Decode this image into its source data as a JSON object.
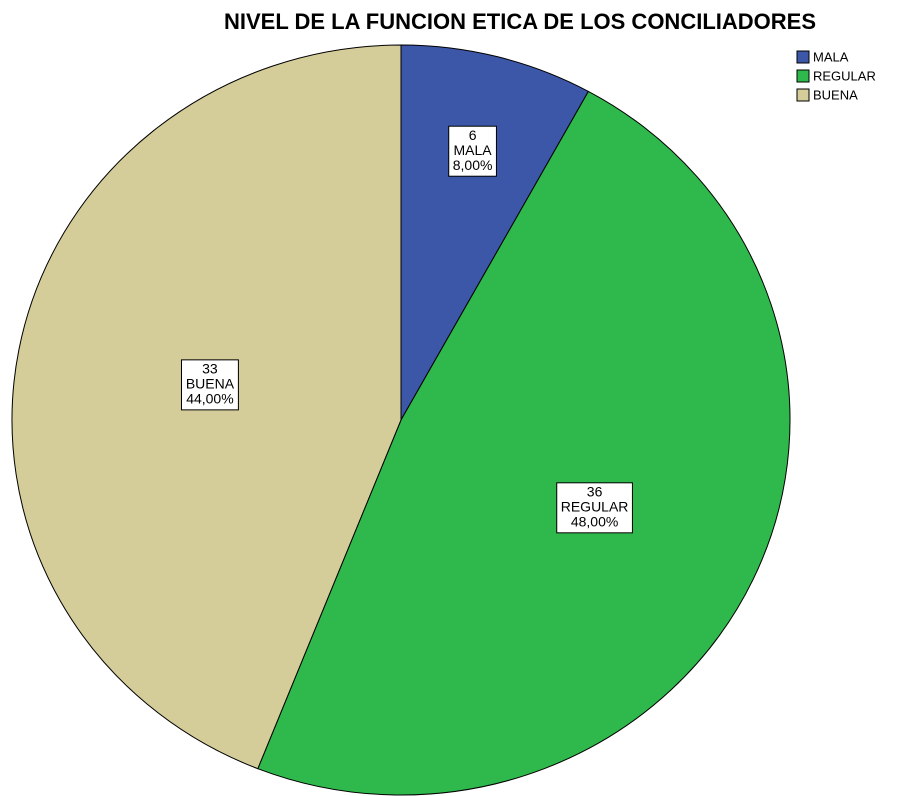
{
  "chart_data": {
    "type": "pie",
    "title": "NIVEL DE LA FUNCION ETICA DE LOS CONCILIADORES",
    "categories": [
      "MALA",
      "REGULAR",
      "BUENA"
    ],
    "values": [
      6,
      36,
      33
    ],
    "percentages": [
      8,
      48,
      44
    ],
    "percentage_labels": [
      "8,00%",
      "48,00%",
      "44,00%"
    ],
    "colors": [
      "#3c56a8",
      "#2fb84b",
      "#d4cd99"
    ],
    "legend": "top-right"
  }
}
